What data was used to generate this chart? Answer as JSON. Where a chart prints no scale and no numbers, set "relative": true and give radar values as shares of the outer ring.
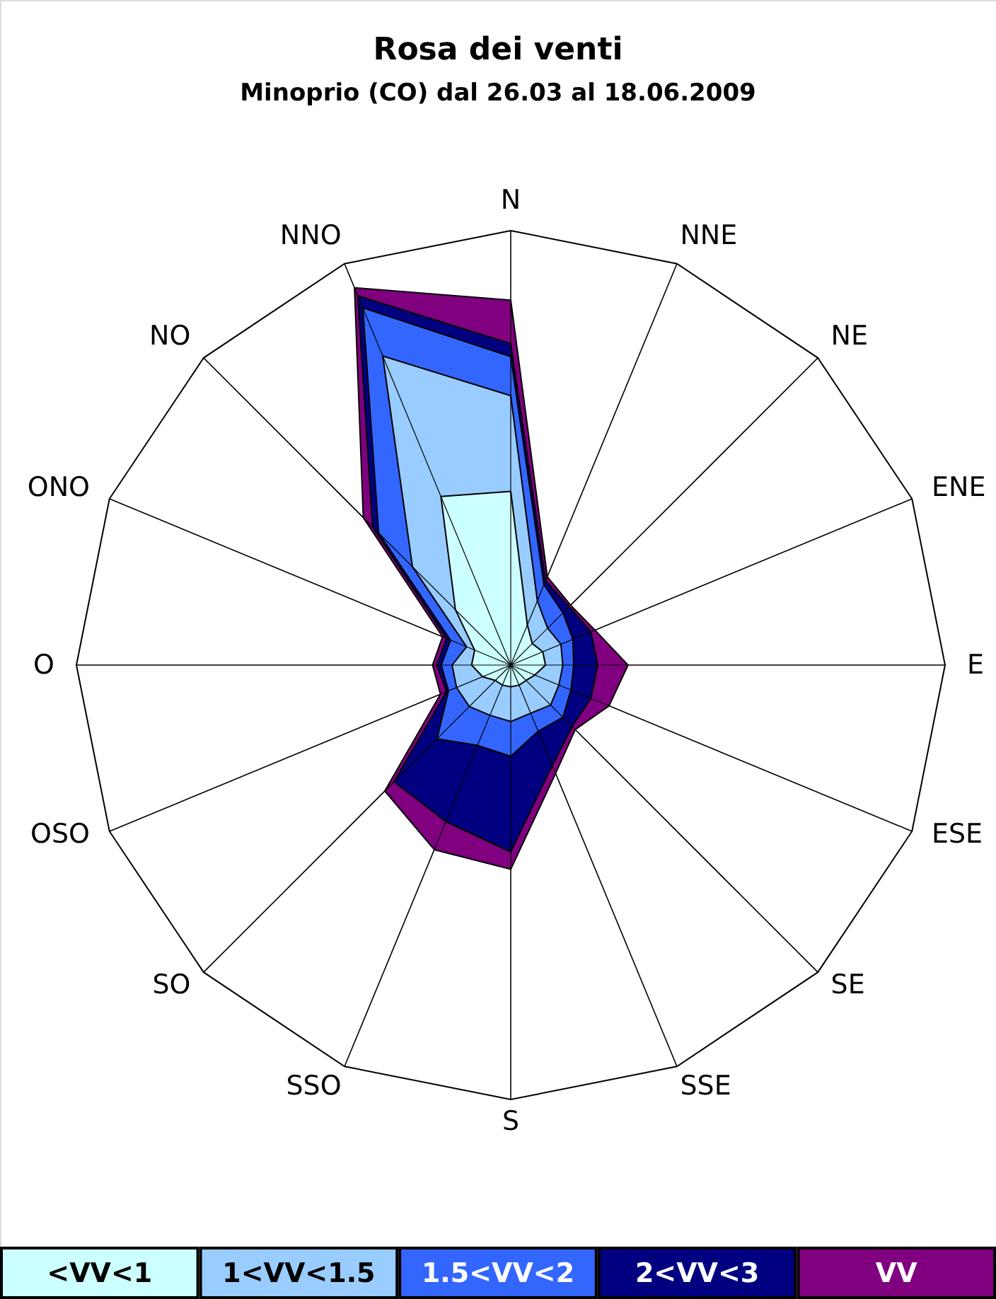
{
  "chart_data": {
    "type": "radar",
    "title": "Rosa dei venti",
    "subtitle": "Minoprio (CO) dal 26.03 al 18.06.2009",
    "relative": true,
    "legend": "bottom",
    "grid": true,
    "categories": [
      "N",
      "NNE",
      "NE",
      "ENE",
      "E",
      "ESE",
      "SE",
      "SSE",
      "S",
      "SSO",
      "SO",
      "OSO",
      "O",
      "ONO",
      "NO",
      "NNO"
    ],
    "series": [
      {
        "name": "<VV<1",
        "color": "#ccffff",
        "values": [
          0.4,
          0.1,
          0.07,
          0.08,
          0.08,
          0.06,
          0.05,
          0.05,
          0.05,
          0.05,
          0.05,
          0.07,
          0.09,
          0.09,
          0.18,
          0.42
        ]
      },
      {
        "name": "1<VV<1.5",
        "color": "#99ccff",
        "values": [
          0.62,
          0.16,
          0.12,
          0.125,
          0.12,
          0.12,
          0.13,
          0.12,
          0.13,
          0.125,
          0.135,
          0.135,
          0.135,
          0.11,
          0.32,
          0.77
        ]
      },
      {
        "name": "1.5<VV<2",
        "color": "#3366ff",
        "values": [
          0.71,
          0.2,
          0.17,
          0.155,
          0.145,
          0.15,
          0.17,
          0.165,
          0.21,
          0.2,
          0.24,
          0.155,
          0.16,
          0.15,
          0.43,
          0.89
        ]
      },
      {
        "name": "2<VV<3",
        "color": "#000080",
        "values": [
          0.74,
          0.21,
          0.19,
          0.2,
          0.2,
          0.2,
          0.2,
          0.25,
          0.43,
          0.39,
          0.38,
          0.16,
          0.17,
          0.16,
          0.45,
          0.92
        ]
      },
      {
        "name": "VV",
        "color": "#800080",
        "values": [
          0.84,
          0.22,
          0.195,
          0.21,
          0.27,
          0.245,
          0.21,
          0.27,
          0.47,
          0.46,
          0.41,
          0.175,
          0.18,
          0.17,
          0.48,
          0.94
        ]
      }
    ]
  }
}
